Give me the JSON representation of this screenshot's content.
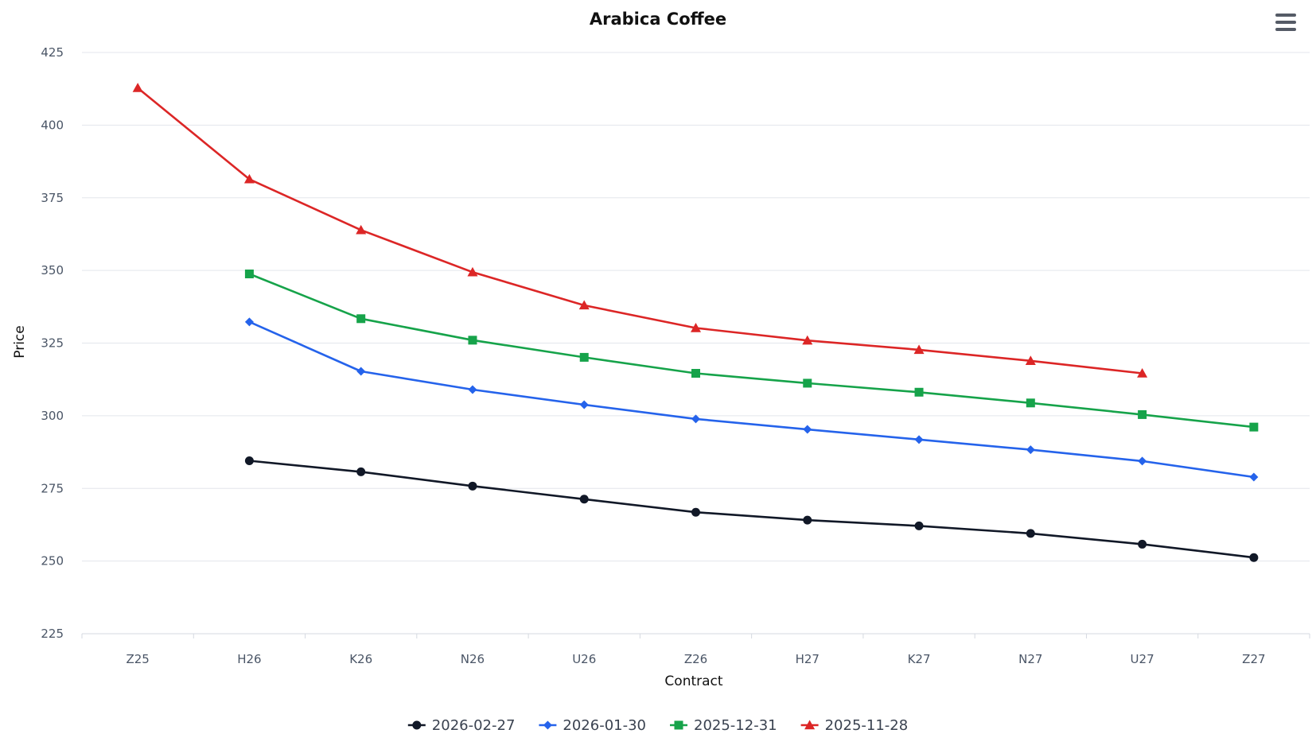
{
  "chart_data": {
    "type": "line",
    "title": "Arabica Coffee",
    "xlabel": "Contract",
    "ylabel": "Price",
    "categories": [
      "Z25",
      "H26",
      "K26",
      "N26",
      "U26",
      "Z26",
      "H27",
      "K27",
      "N27",
      "U27",
      "Z27"
    ],
    "ylim": [
      225,
      425
    ],
    "yticks": [
      225,
      250,
      275,
      300,
      325,
      350,
      375,
      400,
      425
    ],
    "grid": true,
    "legend_position": "bottom-center",
    "series": [
      {
        "name": "2026-02-27",
        "color": "#111827",
        "marker": "circle",
        "values": [
          null,
          284.5,
          280.7,
          275.8,
          271.3,
          266.8,
          264.1,
          262.1,
          259.5,
          255.8,
          251.2
        ]
      },
      {
        "name": "2026-01-30",
        "color": "#2563eb",
        "marker": "diamond",
        "values": [
          null,
          332.3,
          315.3,
          309.0,
          303.8,
          298.9,
          295.3,
          291.8,
          288.3,
          284.4,
          278.9
        ]
      },
      {
        "name": "2025-12-31",
        "color": "#16a34a",
        "marker": "square",
        "values": [
          null,
          348.8,
          333.4,
          326.0,
          320.1,
          314.6,
          311.2,
          308.1,
          304.4,
          300.4,
          296.1
        ]
      },
      {
        "name": "2025-11-28",
        "color": "#dc2626",
        "marker": "triangle",
        "values": [
          412.8,
          381.4,
          363.9,
          349.4,
          338.0,
          330.2,
          325.9,
          322.7,
          318.9,
          314.6,
          null
        ]
      }
    ]
  },
  "ui": {
    "menu_icon": "hamburger-menu-icon"
  }
}
